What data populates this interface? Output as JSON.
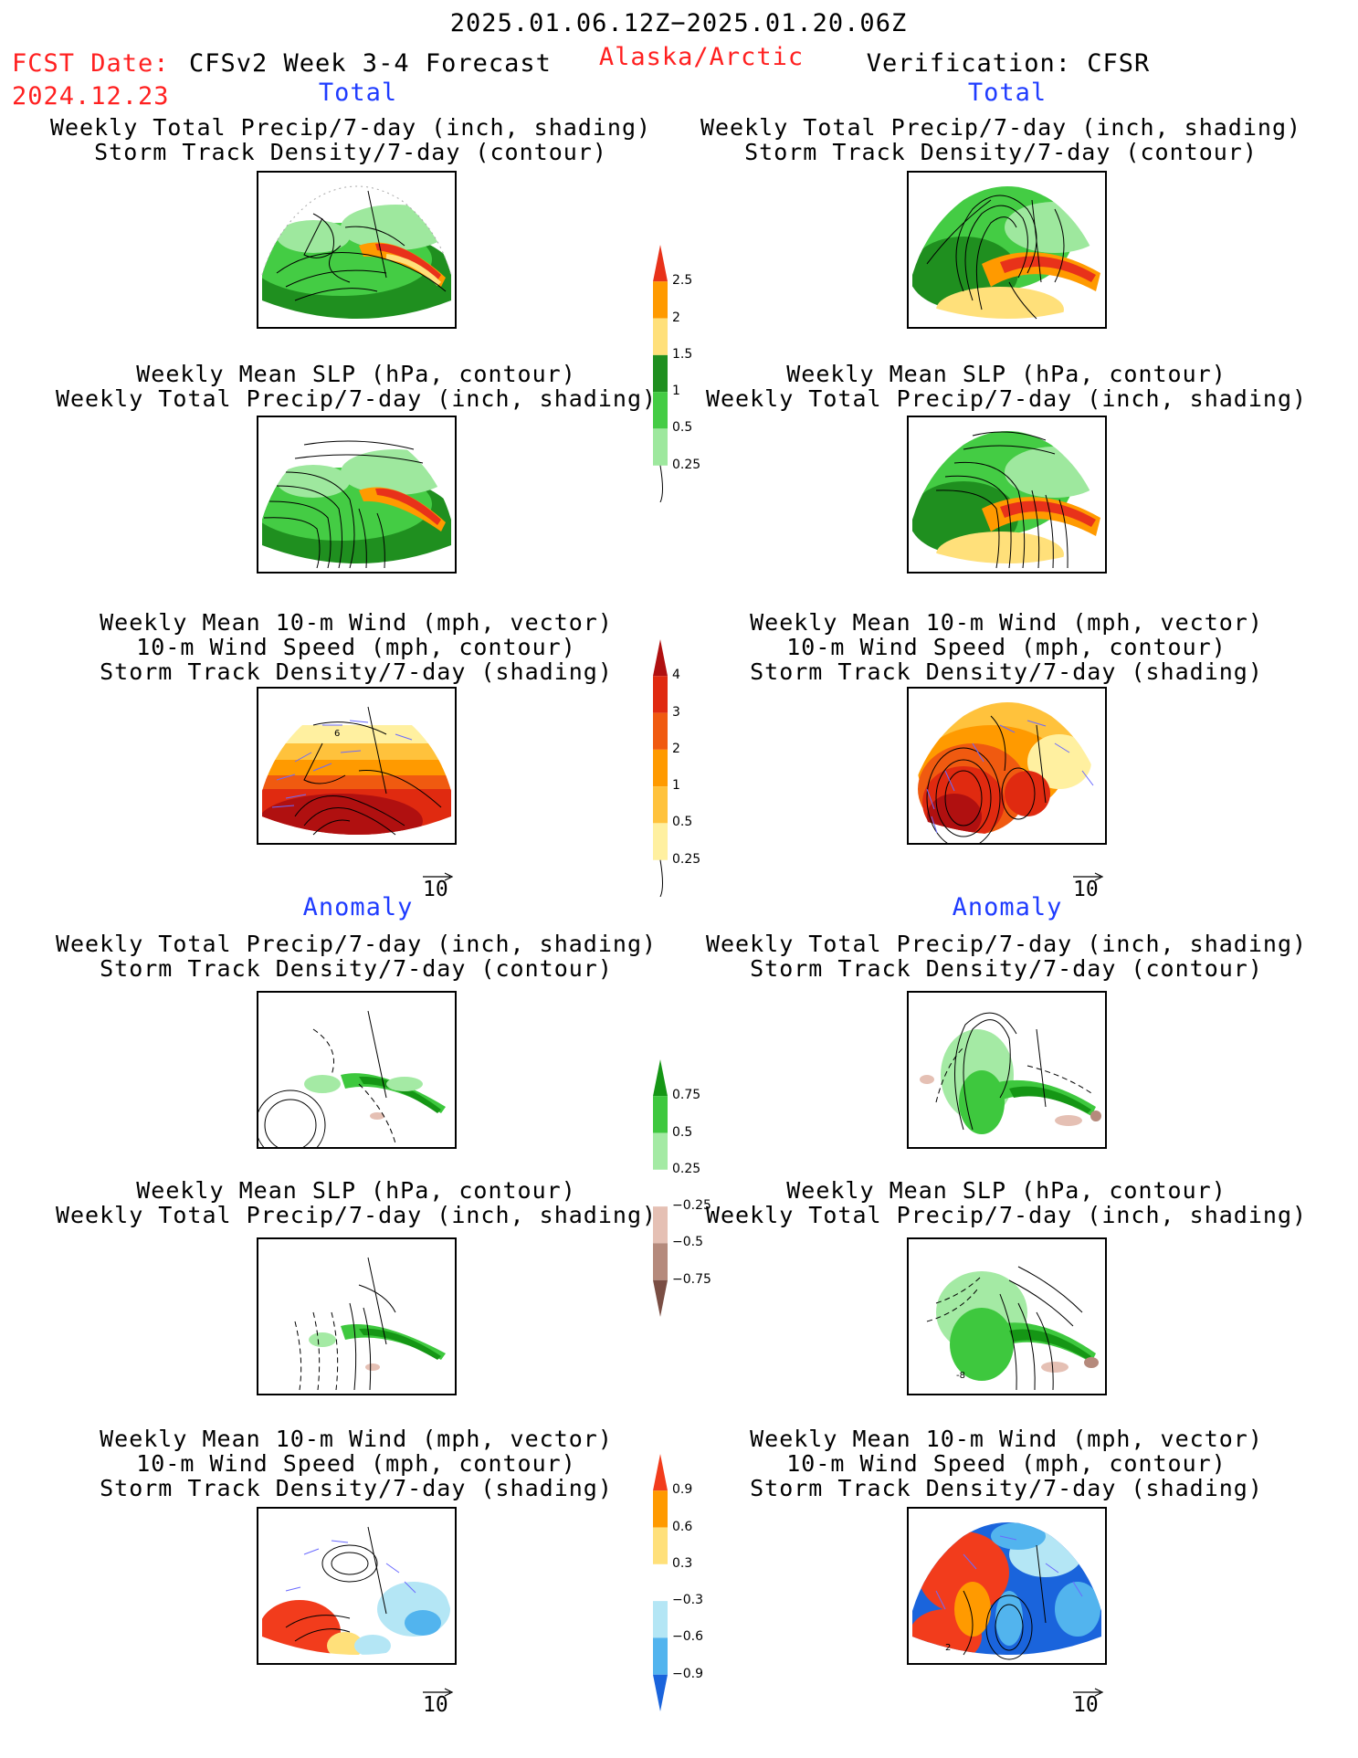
{
  "header": {
    "period": "2025.01.06.12Z−2025.01.20.06Z",
    "fcst_label": "FCST Date:",
    "fcst_date": "2024.12.23",
    "model": "CFSv2 Week 3-4 Forecast",
    "region": "Alaska/Arctic",
    "verification": "Verification: CFSR"
  },
  "sections": {
    "total": "Total",
    "anomaly": "Anomaly"
  },
  "panel_titles": {
    "precip_track": [
      "Weekly Total Precip/7-day (inch, shading)",
      "Storm Track Density/7-day (contour)"
    ],
    "slp_precip": [
      "Weekly Mean SLP (hPa, contour)",
      "Weekly Total Precip/7-day (inch, shading)"
    ],
    "wind_track": [
      "Weekly Mean 10-m Wind (mph, vector)",
      "10-m Wind Speed (mph, contour)",
      "Storm Track Density/7-day (shading)"
    ]
  },
  "vector_scale": "10",
  "map_labels": {
    "fcst_total_wind": "6",
    "cfsr_anom_slp": "-8",
    "cfsr_anom_wind": "2"
  },
  "colorbars": {
    "precip_total": {
      "labels": [
        "2.5",
        "2",
        "1.5",
        "1",
        "0.5",
        "0.25"
      ],
      "colors": [
        "#e8321a",
        "#ff9a00",
        "#ffe07a",
        "#1f8f1f",
        "#44cc44",
        "#9ee89e",
        "#ffffff"
      ]
    },
    "track_total": {
      "labels": [
        "4",
        "3",
        "2",
        "1",
        "0.5",
        "0.25"
      ],
      "colors": [
        "#b01010",
        "#e02a10",
        "#f05a10",
        "#ff9a00",
        "#ffc23c",
        "#fff0a0",
        "#ffffff"
      ]
    },
    "precip_anom": {
      "labels": [
        "0.75",
        "0.5",
        "0.25",
        "−0.25",
        "−0.5",
        "−0.75"
      ],
      "colors": [
        "#159615",
        "#3ec83e",
        "#a4eaa4",
        "#ffffff",
        "#e5c0b4",
        "#b58a7c",
        "#7a4e44"
      ]
    },
    "track_anom": {
      "labels": [
        "0.9",
        "0.6",
        "0.3",
        "−0.3",
        "−0.6",
        "−0.9"
      ],
      "colors": [
        "#f23c1c",
        "#ff9a00",
        "#ffe07a",
        "#ffffff",
        "#b4e6f5",
        "#52b4ee",
        "#1a64dc"
      ]
    }
  },
  "colors": {
    "title_red": "#ff2020",
    "section_blue": "#1f3cff",
    "vector_blue": "#6a6aff"
  }
}
